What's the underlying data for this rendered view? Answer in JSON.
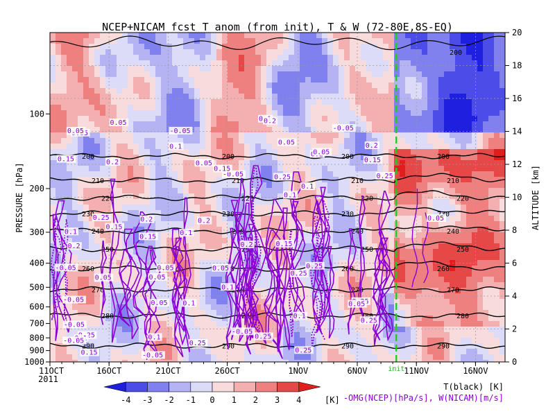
{
  "chart_data": {
    "type": "heatmap",
    "title": "NCEP+NICAM fcst T_anom (from init), T & W  (72-80E,8S-EQ)",
    "ylabel_left": "PRESSURE [hPa]",
    "ylabel_right": "ALTITUDE [km]",
    "year_label": "2011",
    "x_ticks": [
      "11OCT",
      "16OCT",
      "21OCT",
      "26OCT",
      "1NOV",
      "6NOV",
      "11NOV",
      "16NOV"
    ],
    "x_tick_days": [
      0,
      5,
      10,
      15,
      21,
      26,
      31,
      36
    ],
    "xlim_days": [
      0,
      38.5
    ],
    "init_marker_day": 29.3,
    "init_marker_label": "init",
    "pressure_ticks": [
      100,
      200,
      300,
      400,
      500,
      600,
      700,
      800,
      900,
      1000
    ],
    "ylim_pressure": [
      1000,
      47
    ],
    "altitude_ticks": [
      0,
      2,
      4,
      6,
      8,
      10,
      12,
      14,
      16,
      18,
      20
    ],
    "colorbar": {
      "levels": [
        "-4",
        "-3",
        "-2",
        "-1",
        "0",
        "1",
        "2",
        "3",
        "4"
      ],
      "unit": "[K]",
      "colors": [
        "#1f1fe0",
        "#4c4ce8",
        "#8080ee",
        "#b4b4f4",
        "#dcdcf8",
        "#f8dcdc",
        "#f4b0b0",
        "#ee8080",
        "#e64848",
        "#e01e1e"
      ]
    },
    "legend_lines": [
      {
        "label": "T(black) [K]",
        "color": "#000000"
      },
      {
        "label": "-OMG(NCEP)[hPa/s], W(NICAM)[m/s]",
        "color": "#8a00d4"
      }
    ],
    "temperature_contours": [
      {
        "value": 200,
        "pressure": 148
      },
      {
        "value": 210,
        "pressure": 185
      },
      {
        "value": 220,
        "pressure": 218
      },
      {
        "value": 230,
        "pressure": 252
      },
      {
        "value": 240,
        "pressure": 296
      },
      {
        "value": 250,
        "pressure": 350
      },
      {
        "value": 260,
        "pressure": 420
      },
      {
        "value": 270,
        "pressure": 510
      },
      {
        "value": 280,
        "pressure": 650
      },
      {
        "value": 290,
        "pressure": 860
      }
    ],
    "omega_labels": [
      "0.05",
      "0.1",
      "0.15",
      "0.2",
      "0.25",
      "-0.05"
    ]
  }
}
